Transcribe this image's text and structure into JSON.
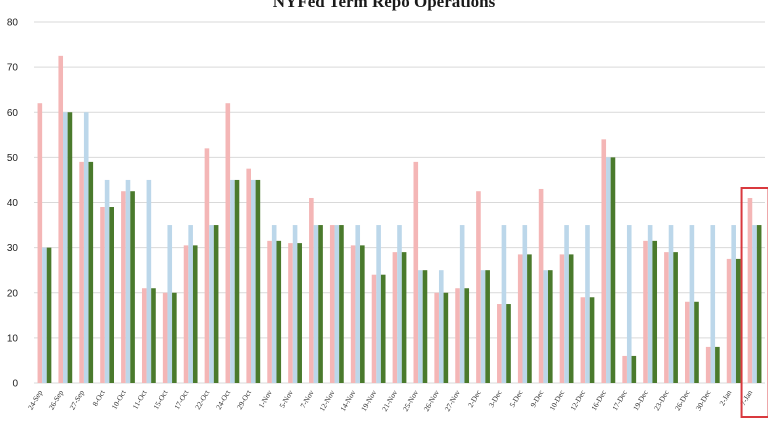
{
  "chart_data": {
    "type": "bar",
    "title": "NYFed Term Repo Operations",
    "xlabel": "",
    "ylabel": "",
    "ylim": [
      0,
      80
    ],
    "yticks": [
      0,
      10,
      20,
      30,
      40,
      50,
      60,
      70,
      80
    ],
    "grid": true,
    "categories": [
      "24-Sep",
      "26-Sep",
      "27-Sep",
      "8-Oct",
      "10-Oct",
      "11-Oct",
      "15-Oct",
      "17-Oct",
      "22-Oct",
      "24-Oct",
      "29-Oct",
      "1-Nov",
      "5-Nov",
      "7-Nov",
      "12-Nov",
      "14-Nov",
      "19-Nov",
      "21-Nov",
      "25-Nov",
      "26-Nov",
      "27-Nov",
      "2-Dec",
      "3-Dec",
      "5-Dec",
      "9-Dec",
      "10-Dec",
      "12-Dec",
      "16-Dec",
      "17-Dec",
      "19-Dec",
      "23-Dec",
      "26-Dec",
      "30-Dec",
      "2-Jan",
      "7-Jan"
    ],
    "series": [
      {
        "color": "#f4b6b6",
        "values": [
          62,
          72.5,
          49,
          39,
          42.5,
          21,
          20,
          30.5,
          52,
          62,
          47.5,
          31.5,
          31,
          41,
          35,
          30.5,
          24,
          29,
          49,
          20,
          21,
          42.5,
          17.5,
          28.5,
          43,
          28.5,
          19,
          54,
          6,
          31.5,
          29,
          18,
          8,
          27.5,
          41
        ]
      },
      {
        "color": "#bcd7ea",
        "values": [
          30,
          60,
          60,
          45,
          45,
          45,
          35,
          35,
          35,
          45,
          45,
          35,
          35,
          35,
          35,
          35,
          35,
          35,
          25,
          25,
          35,
          25,
          35,
          35,
          25,
          35,
          35,
          50,
          35,
          35,
          35,
          35,
          35,
          35,
          35
        ]
      },
      {
        "color": "#4a7a2c",
        "values": [
          30,
          60,
          49,
          39,
          42.5,
          21,
          20,
          30.5,
          35,
          45,
          45,
          31.5,
          31,
          35,
          35,
          30.5,
          24,
          29,
          25,
          20,
          21,
          25,
          17.5,
          28.5,
          25,
          28.5,
          19,
          50,
          6,
          31.5,
          29,
          18,
          8,
          27.5,
          35
        ]
      }
    ],
    "highlight_color": "#d9393e",
    "highlight_category": "7-Jan"
  }
}
